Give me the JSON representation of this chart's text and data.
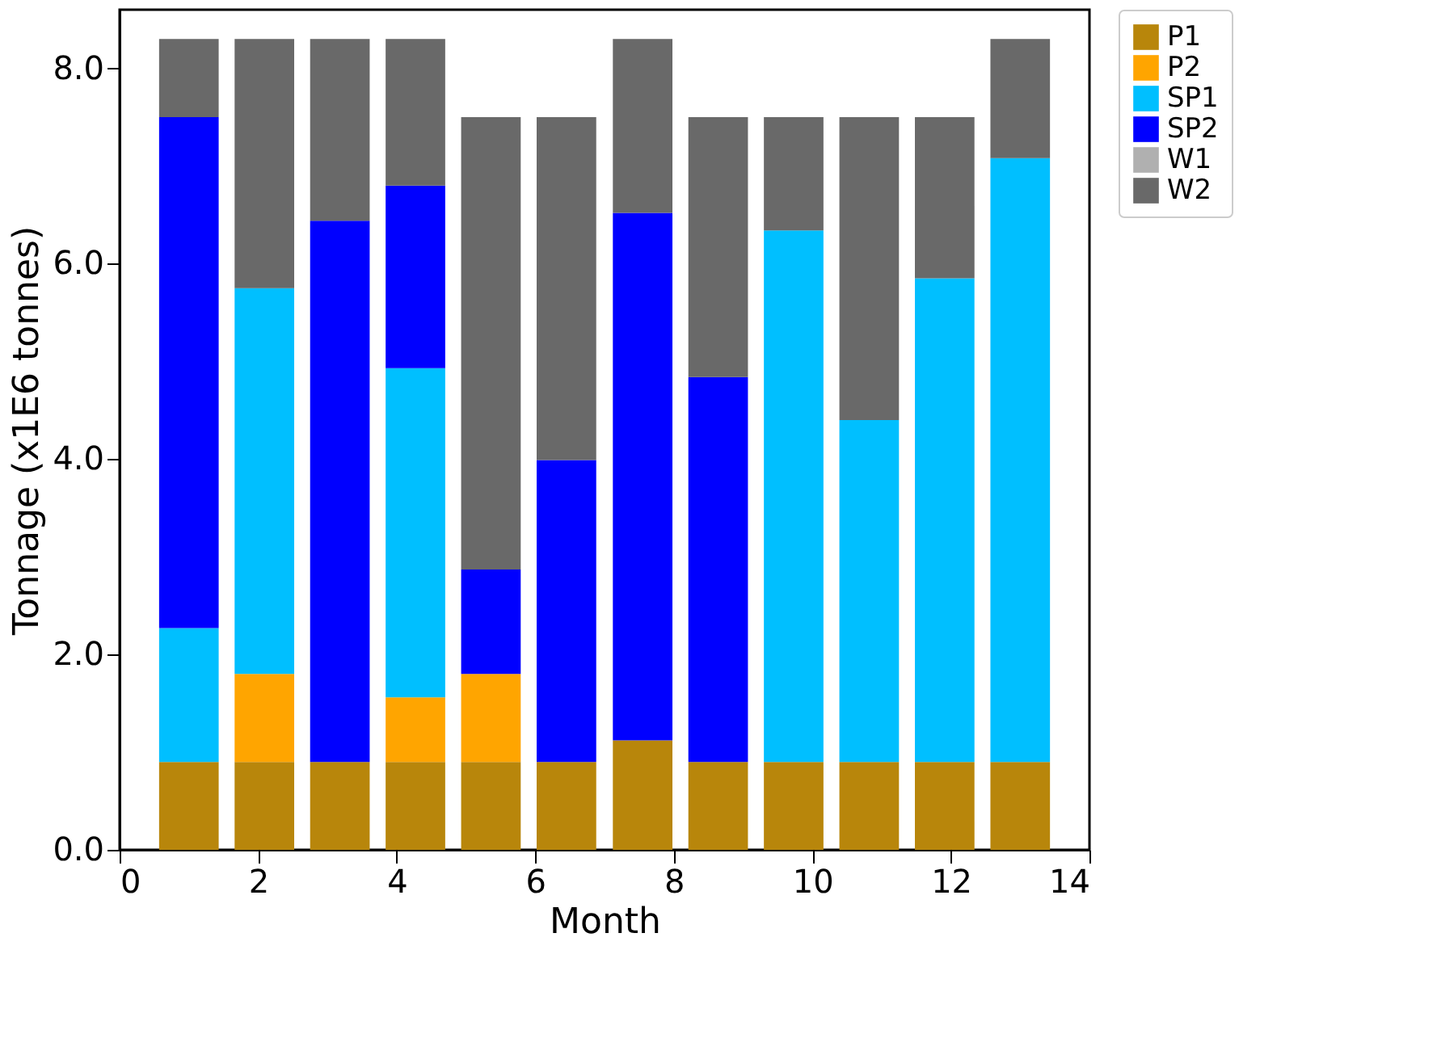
{
  "chart_data": {
    "type": "bar",
    "stacked": true,
    "xlabel": "Month",
    "ylabel": "Tonnage (x1E6 tonnes)",
    "x": [
      1,
      2.09,
      3.18,
      4.27,
      5.36,
      6.45,
      7.55,
      8.64,
      9.73,
      10.82,
      11.91,
      13
    ],
    "series": [
      {
        "name": "P1",
        "color": "#b8860b",
        "values": [
          0.9,
          0.9,
          0.9,
          0.9,
          0.9,
          0.9,
          1.12,
          0.9,
          0.9,
          0.9,
          0.9,
          0.9
        ]
      },
      {
        "name": "P2",
        "color": "#ffa500",
        "values": [
          0,
          0.9,
          0,
          0.66,
          0.9,
          0,
          0,
          0,
          0,
          0,
          0,
          0
        ]
      },
      {
        "name": "SP1",
        "color": "#00bfff",
        "values": [
          1.37,
          3.95,
          0,
          3.37,
          0,
          0,
          0,
          0,
          5.44,
          3.5,
          4.95,
          6.18
        ]
      },
      {
        "name": "SP2",
        "color": "#0000ff",
        "values": [
          5.23,
          0,
          5.54,
          1.87,
          1.07,
          3.09,
          5.4,
          3.94,
          0,
          0,
          0,
          0
        ]
      },
      {
        "name": "W1",
        "color": "#b0b0b0",
        "values": [
          0,
          0,
          0,
          0,
          0,
          0,
          0,
          0,
          0,
          0,
          0,
          0
        ]
      },
      {
        "name": "W2",
        "color": "#696969",
        "values": [
          0.8,
          2.55,
          1.86,
          1.5,
          4.63,
          3.51,
          1.78,
          2.66,
          1.16,
          3.1,
          1.65,
          1.22
        ]
      }
    ],
    "xlim": [
      0,
      14
    ],
    "xticks": [
      0,
      2,
      4,
      6,
      8,
      10,
      12,
      14
    ],
    "ylim": [
      0,
      8.6
    ],
    "yticks": [
      {
        "value": 0,
        "label": "0.0"
      },
      {
        "value": 2,
        "label": "2.0"
      },
      {
        "value": 4,
        "label": "4.0"
      },
      {
        "value": 6,
        "label": "6.0"
      },
      {
        "value": 8,
        "label": "8.0"
      }
    ],
    "grid": false,
    "legend": "top right"
  }
}
